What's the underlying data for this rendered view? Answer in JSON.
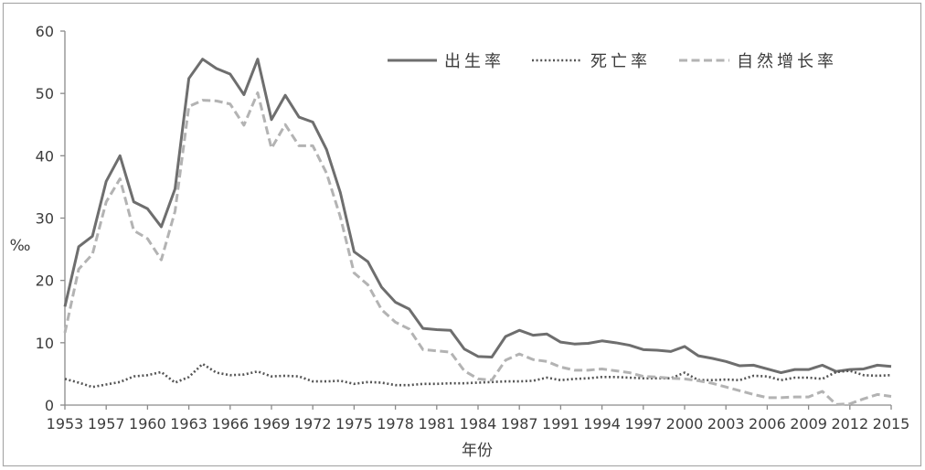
{
  "chart_data": {
    "type": "line",
    "xlabel": "年份",
    "ylabel": "‰",
    "ylim": [
      0,
      60
    ],
    "y_ticks": [
      0,
      10,
      20,
      30,
      40,
      50,
      60
    ],
    "x_tick_labels": [
      "1953",
      "1957",
      "1960",
      "1963",
      "1966",
      "1969",
      "1972",
      "1975",
      "1978",
      "1981",
      "1984",
      "1987",
      "1991",
      "1994",
      "1997",
      "2000",
      "2003",
      "2006",
      "2009",
      "2012",
      "2015"
    ],
    "legend": "top-right",
    "grid": false,
    "series": [
      {
        "name": "出生率",
        "color": "#6e6e6e",
        "values": [
          15.8,
          25.4,
          27.1,
          35.9,
          40.0,
          32.6,
          31.5,
          28.6,
          34.7,
          52.4,
          55.5,
          54.0,
          53.1,
          49.8,
          55.5,
          45.8,
          49.7,
          46.2,
          45.4,
          41.0,
          34.1,
          24.6,
          23.0,
          18.9,
          16.5,
          15.4,
          12.3,
          12.1,
          12.0,
          9.0,
          7.8,
          7.7,
          11.0,
          12.0,
          11.2,
          11.4,
          10.1,
          9.8,
          9.9,
          10.3,
          10.0,
          9.6,
          8.9,
          8.8,
          8.6,
          9.4,
          7.9,
          7.5,
          7.0,
          6.3,
          6.4,
          5.8,
          5.2,
          5.7,
          5.7,
          6.4,
          5.4,
          5.7,
          5.8,
          6.4,
          6.2
        ]
      },
      {
        "name": "死亡率",
        "color": "#555555",
        "values": [
          4.2,
          3.6,
          2.9,
          3.3,
          3.7,
          4.6,
          4.8,
          5.3,
          3.6,
          4.5,
          6.6,
          5.2,
          4.8,
          4.9,
          5.4,
          4.6,
          4.7,
          4.6,
          3.8,
          3.8,
          3.9,
          3.4,
          3.7,
          3.6,
          3.2,
          3.2,
          3.4,
          3.4,
          3.5,
          3.5,
          3.6,
          3.7,
          3.8,
          3.8,
          3.9,
          4.4,
          4.0,
          4.2,
          4.3,
          4.5,
          4.5,
          4.4,
          4.3,
          4.3,
          4.3,
          5.2,
          4.0,
          4.0,
          4.1,
          4.0,
          4.7,
          4.6,
          4.0,
          4.4,
          4.4,
          4.2,
          5.3,
          5.5,
          4.8,
          4.7,
          4.8
        ]
      },
      {
        "name": "自然增长率",
        "color": "#b3b3b3",
        "values": [
          11.6,
          21.8,
          24.2,
          32.6,
          36.3,
          28.0,
          26.7,
          23.3,
          31.1,
          47.9,
          48.9,
          48.8,
          48.3,
          44.9,
          50.1,
          41.2,
          45.0,
          41.6,
          41.6,
          37.2,
          30.2,
          21.2,
          19.3,
          15.3,
          13.3,
          12.2,
          8.9,
          8.7,
          8.5,
          5.5,
          4.2,
          4.0,
          7.2,
          8.2,
          7.3,
          7.0,
          6.1,
          5.6,
          5.6,
          5.8,
          5.5,
          5.2,
          4.6,
          4.5,
          4.3,
          4.2,
          3.9,
          3.5,
          2.9,
          2.3,
          1.7,
          1.2,
          1.2,
          1.3,
          1.3,
          2.2,
          0.1,
          0.2,
          1.0,
          1.7,
          1.4
        ]
      }
    ]
  }
}
